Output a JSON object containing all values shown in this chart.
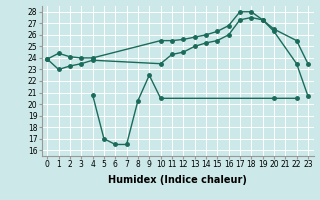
{
  "bg_color": "#cce8e8",
  "grid_color": "#ffffff",
  "line_color": "#1a6b5a",
  "xlabel": "Humidex (Indice chaleur)",
  "ylabel_ticks": [
    16,
    17,
    18,
    19,
    20,
    21,
    22,
    23,
    24,
    25,
    26,
    27,
    28
  ],
  "xlim": [
    -0.5,
    23.5
  ],
  "ylim": [
    15.5,
    28.5
  ],
  "line1_x": [
    0,
    1,
    2,
    3,
    4,
    10,
    11,
    12,
    13,
    14,
    15,
    16,
    17,
    18,
    19,
    20,
    22,
    23
  ],
  "line1_y": [
    23.9,
    24.4,
    24.1,
    24.0,
    24.0,
    25.5,
    25.5,
    25.6,
    25.8,
    26.0,
    26.3,
    26.8,
    28.0,
    28.0,
    27.3,
    26.5,
    25.5,
    23.5
  ],
  "line2_x": [
    0,
    1,
    2,
    3,
    4,
    10,
    11,
    12,
    13,
    14,
    15,
    16,
    17,
    18,
    19,
    20,
    22,
    23
  ],
  "line2_y": [
    23.9,
    23.0,
    23.3,
    23.5,
    23.8,
    23.5,
    24.3,
    24.5,
    25.0,
    25.3,
    25.5,
    26.0,
    27.3,
    27.5,
    27.3,
    26.3,
    23.5,
    20.7
  ],
  "line3_x": [
    4,
    5,
    6,
    7,
    8,
    9,
    10,
    20,
    22
  ],
  "line3_y": [
    20.8,
    17.0,
    16.5,
    16.5,
    20.3,
    22.5,
    20.5,
    20.5,
    20.5
  ],
  "marker_size": 2.5,
  "linewidth": 1.0,
  "tick_fontsize": 5.5,
  "xlabel_fontsize": 7
}
